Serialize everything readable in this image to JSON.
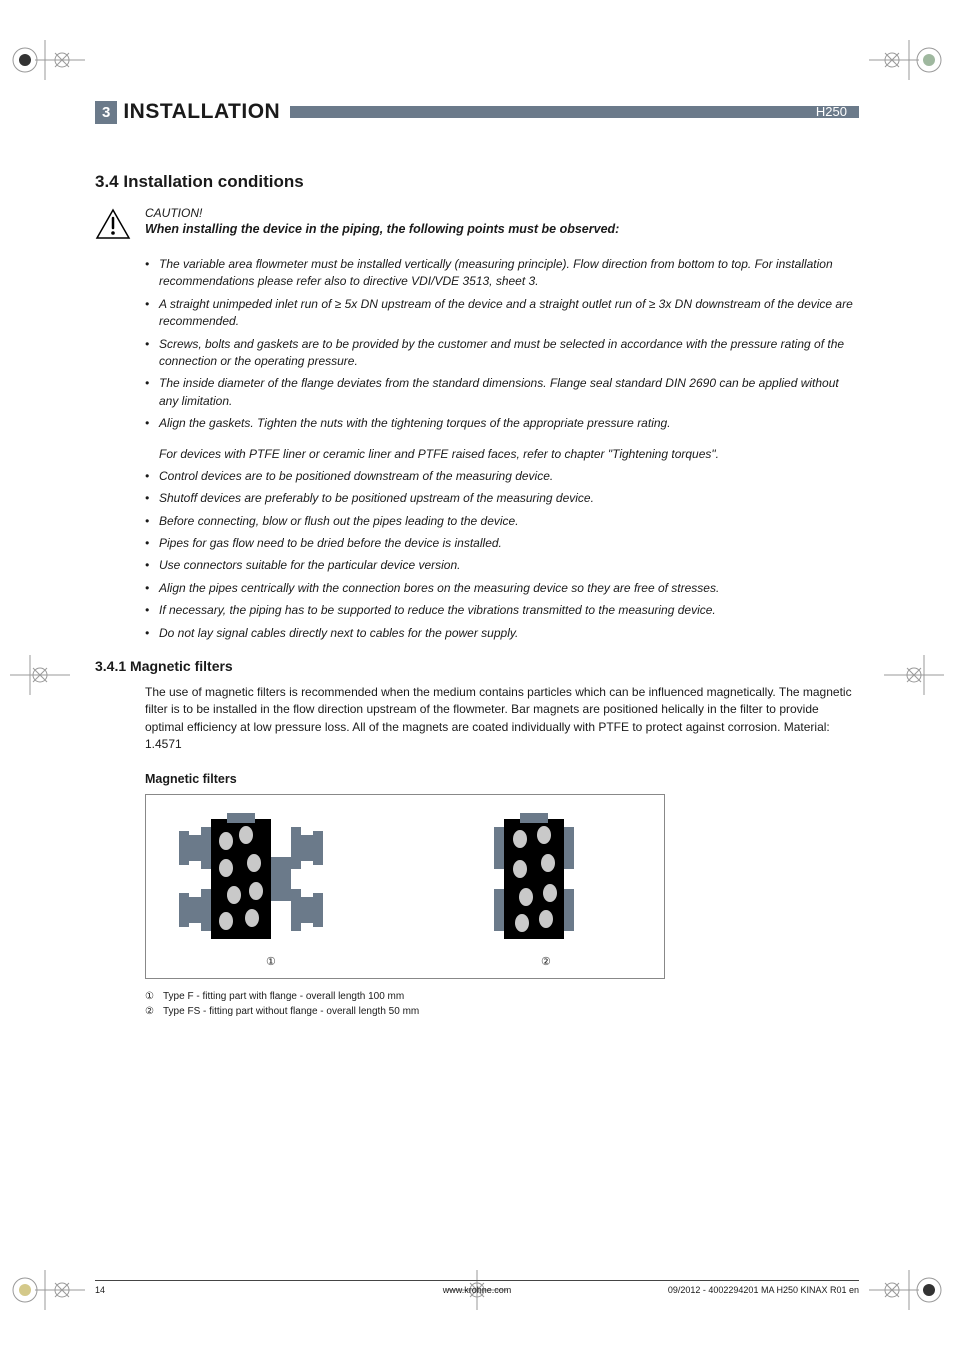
{
  "header": {
    "section_number": "3",
    "section_title": "INSTALLATION",
    "doc_code": "H250",
    "bar_color": "#6b7a8a"
  },
  "section": {
    "heading": "3.4  Installation conditions",
    "caution_label": "CAUTION!",
    "caution_subtitle": "When installing the device in the piping, the following points must be observed:",
    "bullets_a": [
      "The variable area flowmeter must be installed vertically (measuring principle). Flow direction from bottom to top. For installation recommendations please refer also to directive VDI/VDE 3513, sheet 3.",
      "A straight unimpeded inlet run of ≥ 5x DN upstream of the device and a straight outlet run of ≥ 3x DN downstream of the device are recommended.",
      "Screws, bolts and gaskets are to be provided by the customer and must be selected in accordance with the pressure rating of the connection or the operating pressure.",
      "The inside diameter of the flange deviates from the standard dimensions. Flange seal standard DIN 2690 can be applied without any limitation.",
      "Align the gaskets. Tighten the nuts with the tightening torques of the appropriate pressure rating."
    ],
    "sub_indent": " For devices with PTFE liner or ceramic liner and PTFE raised faces, refer to chapter \"Tightening torques\".",
    "bullets_b": [
      "Control devices are to be positioned downstream of the measuring device.",
      "Shutoff devices are preferably to be positioned upstream of the measuring device.",
      "Before connecting, blow or flush out the pipes leading to the device.",
      "Pipes for gas flow need to be dried before the device is installed.",
      "Use connectors suitable for the particular device version.",
      "Align the pipes centrically with the connection bores on the measuring device so they are free of stresses.",
      "If necessary, the piping has to be supported to reduce the vibrations transmitted to the measuring device.",
      "Do not lay signal cables directly next to cables for the power supply."
    ]
  },
  "subsection": {
    "heading": "3.4.1  Magnetic filters",
    "paragraph": "The use of magnetic filters is recommended when the medium contains particles which can be influenced magnetically. The magnetic filter is to be installed in the flow direction upstream of the flowmeter. Bar magnets are positioned helically in the filter to provide optimal efficiency at low pressure loss. All of the magnets are coated individually with PTFE to protect against corrosion. Material: 1.4571",
    "fig_heading": "Magnetic filters",
    "legend": [
      {
        "num": "①",
        "text": "Type F - fitting part with flange - overall length 100 mm"
      },
      {
        "num": "②",
        "text": "Type FS - fitting part without flange - overall length 50 mm"
      }
    ],
    "fig_colors": {
      "flange": "#6b7a8a",
      "body_dark": "#000000",
      "magnet_light": "#c9c9c9"
    }
  },
  "footer": {
    "page": "14",
    "center": "www.krohne.com",
    "right": "09/2012 - 4002294201 MA H250 KINAX R01 en"
  }
}
